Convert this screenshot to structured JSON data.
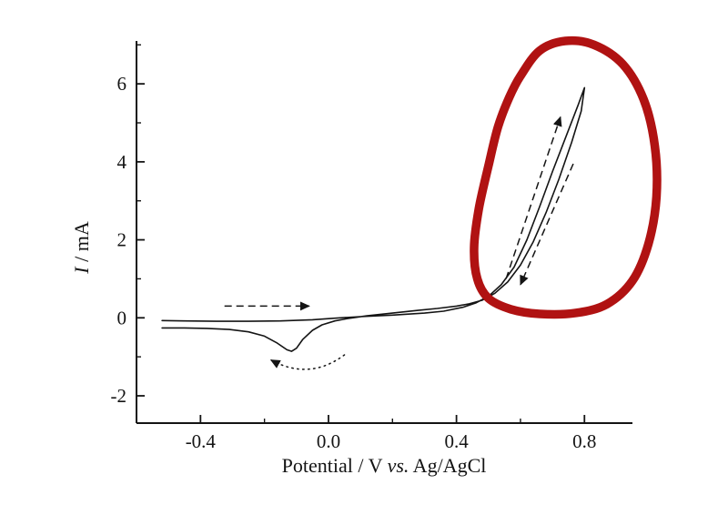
{
  "figure": {
    "background": "#ffffff"
  },
  "chart_data": {
    "type": "line",
    "subtype": "cyclic-voltammogram",
    "title": "",
    "xlabel": {
      "pre": "Potential / V ",
      "italic": "vs.",
      "post": " Ag/AgCl"
    },
    "ylabel": {
      "italic": "I",
      "rest": " / mA"
    },
    "x_axis": {
      "min": -0.6,
      "max": 0.95,
      "major_ticks": [
        -0.4,
        0.0,
        0.4,
        0.8
      ],
      "major_labels": [
        "-0.4",
        "0.0",
        "0.4",
        "0.8"
      ],
      "minor_ticks": [
        -0.2,
        0.2,
        0.6
      ]
    },
    "y_axis": {
      "min": -2.7,
      "max": 7.1,
      "major_ticks": [
        -2,
        0,
        2,
        4,
        6
      ],
      "major_labels": [
        "-2",
        "0",
        "2",
        "4",
        "6"
      ],
      "minor_ticks": [
        -1,
        1,
        3,
        5,
        7
      ]
    },
    "grid": "off",
    "legend": "none",
    "series": [
      {
        "name": "cv-cycle",
        "color": "#141414",
        "stroke_width": 1.6,
        "points": [
          [
            -0.52,
            -0.07
          ],
          [
            -0.45,
            -0.08
          ],
          [
            -0.35,
            -0.09
          ],
          [
            -0.25,
            -0.09
          ],
          [
            -0.15,
            -0.08
          ],
          [
            -0.05,
            -0.05
          ],
          [
            0.02,
            -0.01
          ],
          [
            0.1,
            0.03
          ],
          [
            0.2,
            0.07
          ],
          [
            0.3,
            0.12
          ],
          [
            0.36,
            0.17
          ],
          [
            0.42,
            0.27
          ],
          [
            0.46,
            0.38
          ],
          [
            0.5,
            0.55
          ],
          [
            0.54,
            0.85
          ],
          [
            0.58,
            1.3
          ],
          [
            0.62,
            2.0
          ],
          [
            0.66,
            2.85
          ],
          [
            0.7,
            3.75
          ],
          [
            0.74,
            4.6
          ],
          [
            0.78,
            5.45
          ],
          [
            0.8,
            5.9
          ],
          [
            0.79,
            5.3
          ],
          [
            0.76,
            4.5
          ],
          [
            0.72,
            3.55
          ],
          [
            0.68,
            2.7
          ],
          [
            0.64,
            1.95
          ],
          [
            0.6,
            1.35
          ],
          [
            0.56,
            0.92
          ],
          [
            0.52,
            0.63
          ],
          [
            0.48,
            0.45
          ],
          [
            0.44,
            0.36
          ],
          [
            0.4,
            0.3
          ],
          [
            0.34,
            0.24
          ],
          [
            0.28,
            0.19
          ],
          [
            0.2,
            0.12
          ],
          [
            0.12,
            0.05
          ],
          [
            0.06,
            -0.02
          ],
          [
            0.02,
            -0.08
          ],
          [
            -0.02,
            -0.18
          ],
          [
            -0.05,
            -0.32
          ],
          [
            -0.08,
            -0.55
          ],
          [
            -0.1,
            -0.78
          ],
          [
            -0.115,
            -0.86
          ],
          [
            -0.13,
            -0.82
          ],
          [
            -0.16,
            -0.65
          ],
          [
            -0.2,
            -0.47
          ],
          [
            -0.25,
            -0.36
          ],
          [
            -0.31,
            -0.3
          ],
          [
            -0.38,
            -0.27
          ],
          [
            -0.45,
            -0.26
          ],
          [
            -0.52,
            -0.26
          ]
        ]
      }
    ],
    "annotations": {
      "red_loop": {
        "color": "#b01212",
        "stroke_width": 9.5,
        "points": [
          [
            0.6,
            6.2
          ],
          [
            0.66,
            6.85
          ],
          [
            0.74,
            7.1
          ],
          [
            0.83,
            7.0
          ],
          [
            0.92,
            6.5
          ],
          [
            0.985,
            5.6
          ],
          [
            1.02,
            4.4
          ],
          [
            1.025,
            3.1
          ],
          [
            1.0,
            1.9
          ],
          [
            0.95,
            0.95
          ],
          [
            0.87,
            0.35
          ],
          [
            0.77,
            0.12
          ],
          [
            0.66,
            0.1
          ],
          [
            0.57,
            0.22
          ],
          [
            0.5,
            0.5
          ],
          [
            0.465,
            1.0
          ],
          [
            0.455,
            1.8
          ],
          [
            0.47,
            2.8
          ],
          [
            0.5,
            3.9
          ],
          [
            0.53,
            4.9
          ],
          [
            0.565,
            5.65
          ]
        ]
      },
      "arrows": [
        {
          "name": "forward-scan-arrow",
          "kind": "line",
          "dash": "8 5",
          "from": [
            -0.325,
            0.3
          ],
          "to": [
            -0.06,
            0.3
          ]
        },
        {
          "name": "anodic-rise-arrow",
          "kind": "line",
          "dash": "8 5",
          "from": [
            0.555,
            1.0
          ],
          "to": [
            0.725,
            5.15
          ]
        },
        {
          "name": "reverse-scan-arrow",
          "kind": "line",
          "dash": "8 5",
          "from": [
            0.765,
            3.95
          ],
          "to": [
            0.6,
            0.85
          ]
        },
        {
          "name": "cathodic-loop-arrow",
          "kind": "curve",
          "dash": "1.5 4.5",
          "points": [
            [
              0.05,
              -0.95
            ],
            [
              -0.06,
              -1.62
            ],
            [
              -0.18,
              -1.08
            ]
          ]
        }
      ]
    }
  }
}
